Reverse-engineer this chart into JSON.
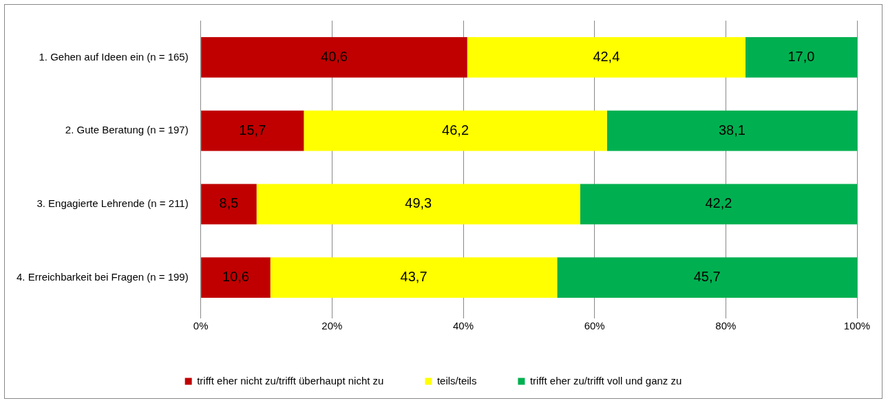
{
  "chart_data": {
    "type": "bar",
    "orientation": "horizontal",
    "stacked": true,
    "categories": [
      "1. Gehen auf Ideen ein (n = 165)",
      "2. Gute Beratung (n = 197)",
      "3. Engagierte Lehrende (n = 211)",
      "4. Erreichbarkeit bei Fragen (n = 199)"
    ],
    "series": [
      {
        "name": "trifft eher nicht zu/trifft überhaupt nicht zu",
        "color": "#c00000",
        "values": [
          40.6,
          15.7,
          8.5,
          10.6
        ],
        "value_labels": [
          "40,6",
          "15,7",
          "8,5",
          "10,6"
        ]
      },
      {
        "name": "teils/teils",
        "color": "#ffff00",
        "values": [
          42.4,
          46.2,
          49.3,
          43.7
        ],
        "value_labels": [
          "42,4",
          "46,2",
          "49,3",
          "43,7"
        ]
      },
      {
        "name": "trifft eher zu/trifft voll und ganz zu",
        "color": "#00b050",
        "values": [
          17.0,
          38.1,
          42.2,
          45.7
        ],
        "value_labels": [
          "17,0",
          "38,1",
          "42,2",
          "45,7"
        ]
      }
    ],
    "xlim": [
      0,
      100
    ],
    "xticks": [
      {
        "value": 0,
        "label": "0%"
      },
      {
        "value": 20,
        "label": "20%"
      },
      {
        "value": 40,
        "label": "40%"
      },
      {
        "value": 60,
        "label": "60%"
      },
      {
        "value": 80,
        "label": "80%"
      },
      {
        "value": 100,
        "label": "100%"
      }
    ],
    "grid": "x",
    "legend": "bottom"
  }
}
